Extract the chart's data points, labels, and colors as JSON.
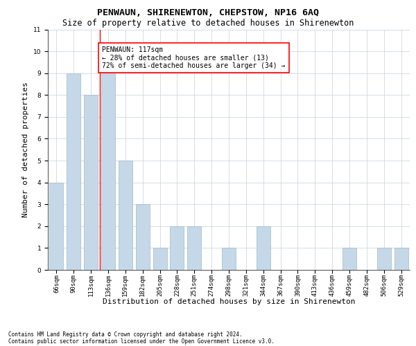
{
  "title": "PENWAUN, SHIRENEWTON, CHEPSTOW, NP16 6AQ",
  "subtitle": "Size of property relative to detached houses in Shirenewton",
  "xlabel": "Distribution of detached houses by size in Shirenewton",
  "ylabel": "Number of detached properties",
  "footer_line1": "Contains HM Land Registry data © Crown copyright and database right 2024.",
  "footer_line2": "Contains public sector information licensed under the Open Government Licence v3.0.",
  "categories": [
    "66sqm",
    "90sqm",
    "113sqm",
    "136sqm",
    "159sqm",
    "182sqm",
    "205sqm",
    "228sqm",
    "251sqm",
    "274sqm",
    "298sqm",
    "321sqm",
    "344sqm",
    "367sqm",
    "390sqm",
    "413sqm",
    "436sqm",
    "459sqm",
    "482sqm",
    "506sqm",
    "529sqm"
  ],
  "values": [
    4,
    9,
    8,
    9,
    5,
    3,
    1,
    2,
    2,
    0,
    1,
    0,
    2,
    0,
    0,
    0,
    0,
    1,
    0,
    1,
    1
  ],
  "bar_color": "#c5d8e8",
  "bar_edge_color": "#a0b8cc",
  "bar_width": 0.8,
  "ylim": [
    0,
    11
  ],
  "yticks": [
    0,
    1,
    2,
    3,
    4,
    5,
    6,
    7,
    8,
    9,
    10,
    11
  ],
  "annotation_text": "PENWAUN: 117sqm\n← 28% of detached houses are smaller (13)\n72% of semi-detached houses are larger (34) →",
  "annotation_box_color": "white",
  "annotation_box_edge_color": "red",
  "vline_x_index": 2.5,
  "vline_color": "red",
  "grid_color": "#c8d0d8",
  "background_color": "white",
  "title_fontsize": 9.5,
  "subtitle_fontsize": 8.5,
  "axis_label_fontsize": 8,
  "tick_fontsize": 6.5,
  "annotation_fontsize": 7,
  "footer_fontsize": 5.5
}
